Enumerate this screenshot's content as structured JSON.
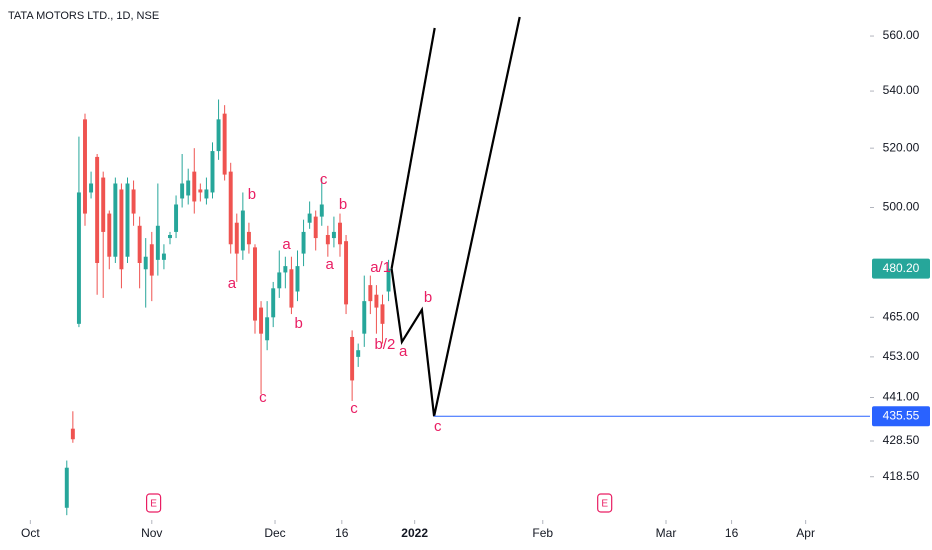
{
  "chart_data": {
    "type": "candlestick",
    "title": "TATA MOTORS LTD., 1D, NSE",
    "log_scale": true,
    "grid": false,
    "up_color": "#26a69a",
    "down_color": "#ef5350",
    "candles": {
      "x": [
        6,
        7,
        8,
        9,
        10,
        11,
        12,
        13,
        14,
        15,
        16,
        17,
        18,
        19,
        20,
        21,
        22,
        23,
        24,
        25,
        26,
        27,
        28,
        29,
        30,
        31,
        32,
        33,
        34,
        35,
        36,
        37,
        38,
        39,
        40,
        41,
        42,
        43,
        44,
        45,
        46,
        47,
        48,
        49,
        50,
        51,
        52,
        53,
        54,
        55,
        56,
        57,
        58,
        59
      ],
      "open": [
        410,
        432,
        463,
        530,
        505,
        517,
        510,
        498,
        484,
        506,
        484,
        506,
        494,
        480,
        488,
        483,
        483,
        490,
        492,
        503,
        504,
        512,
        506,
        503,
        505,
        519,
        532,
        512,
        495,
        486,
        492,
        487,
        468,
        458,
        465,
        474,
        479,
        480,
        473,
        485,
        495,
        497,
        497,
        491,
        490,
        495,
        489,
        459,
        453,
        460,
        475,
        472,
        469,
        473
      ],
      "high": [
        423,
        437,
        524,
        532,
        512,
        518,
        512,
        499,
        510,
        508,
        510,
        509,
        497,
        490,
        492,
        508,
        488,
        492,
        504,
        518,
        513,
        520,
        508,
        510,
        522,
        537,
        535,
        515,
        498,
        505,
        495,
        488,
        470,
        470,
        476,
        486,
        484,
        484,
        486,
        496,
        502,
        499,
        510,
        494,
        497,
        498,
        491,
        461,
        457,
        478,
        478,
        475,
        472,
        483
      ],
      "low": [
        408,
        428,
        462,
        494,
        503,
        472,
        471,
        480,
        482,
        474,
        482,
        494,
        474,
        468,
        470,
        478,
        480,
        488,
        490,
        500,
        501,
        498,
        502,
        501,
        503,
        516,
        509,
        485,
        476,
        483,
        485,
        460,
        442,
        455,
        462,
        471,
        474,
        466,
        470,
        481,
        493,
        486,
        494,
        484,
        487,
        484,
        466,
        440,
        450,
        456,
        466,
        460,
        457,
        470
      ],
      "close": [
        421,
        429,
        505,
        498,
        508,
        482,
        492,
        484,
        508,
        480,
        508,
        498,
        482,
        484,
        478,
        494,
        485,
        491,
        501,
        508,
        509,
        502,
        505,
        506,
        519,
        530,
        511,
        488,
        485,
        499,
        488,
        464,
        460,
        465,
        474,
        479,
        481,
        468,
        481,
        492,
        498,
        490,
        501,
        488,
        492,
        488,
        469,
        446,
        455,
        470,
        470,
        468,
        463,
        480.2
      ]
    },
    "last_price_label": "480.20",
    "xlim": [
      -5,
      138.3
    ],
    "xticks": [
      {
        "value": 0,
        "label": "Oct"
      },
      {
        "value": 20,
        "label": "Nov"
      },
      {
        "value": 40.3,
        "label": "Dec"
      },
      {
        "value": 51.3,
        "label": "16"
      },
      {
        "value": 63.3,
        "label": "2022"
      },
      {
        "value": 84.4,
        "label": "Feb"
      },
      {
        "value": 104.7,
        "label": "Mar"
      },
      {
        "value": 115.5,
        "label": "16"
      },
      {
        "value": 127.7,
        "label": "Apr"
      }
    ],
    "ylim": [
      406.7,
      573.5
    ],
    "yticks": [
      {
        "value": 560,
        "label": "560.00"
      },
      {
        "value": 540,
        "label": "540.00"
      },
      {
        "value": 520,
        "label": "520.00"
      },
      {
        "value": 500,
        "label": "500.00"
      },
      {
        "value": 465,
        "label": "465.00"
      },
      {
        "value": 453,
        "label": "453.00"
      },
      {
        "value": 441,
        "label": "441.00"
      },
      {
        "value": 428.5,
        "label": "428.50"
      },
      {
        "value": 418.5,
        "label": "418.50"
      }
    ],
    "horizontal_line": {
      "value": 435.55,
      "label": "435.55",
      "start": 66.5,
      "color": "#2962ff"
    },
    "drawings": [
      {
        "color": "#000000",
        "x": [
          59.5,
          66.6
        ],
        "y": [
          480.2,
          563.0
        ]
      },
      {
        "color": "#000000",
        "x": [
          59.5,
          61.2,
          64.5,
          66.5,
          80.6
        ],
        "y": [
          480.2,
          457.5,
          467.3,
          435.55,
          567.1
        ]
      }
    ],
    "annotation_color": "#e91e63",
    "annotations": [
      {
        "text": "a",
        "x": 33.2,
        "y": 475.3
      },
      {
        "text": "b",
        "x": 36.5,
        "y": 504.1
      },
      {
        "text": "c",
        "x": 38.3,
        "y": 440.8
      },
      {
        "text": "a",
        "x": 42.2,
        "y": 487.8
      },
      {
        "text": "b",
        "x": 44.2,
        "y": 463.0
      },
      {
        "text": "c",
        "x": 48.3,
        "y": 509.2
      },
      {
        "text": "b",
        "x": 51.5,
        "y": 500.8
      },
      {
        "text": "a",
        "x": 49.3,
        "y": 481.3
      },
      {
        "text": "c",
        "x": 53.3,
        "y": 437.6
      },
      {
        "text": "a/1",
        "x": 57.7,
        "y": 480.4
      },
      {
        "text": "b/2",
        "x": 58.4,
        "y": 456.6
      },
      {
        "text": "a",
        "x": 61.4,
        "y": 454.4
      },
      {
        "text": "b",
        "x": 65.5,
        "y": 471.0
      },
      {
        "text": "c",
        "x": 67.1,
        "y": 432.5
      }
    ],
    "events": [
      {
        "label": "E",
        "x": 20.3
      },
      {
        "label": "E",
        "x": 94.6
      }
    ]
  }
}
